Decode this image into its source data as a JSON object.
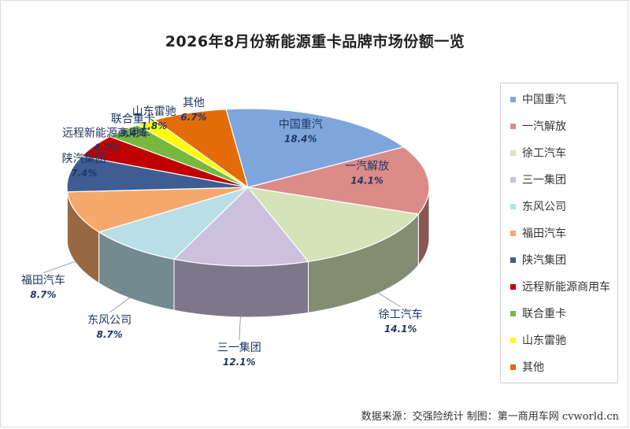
{
  "source_note": "数据来源：交强险统计   制图：第一商用车网 cvworld.cn",
  "chart_data": {
    "type": "pie",
    "title": "2026年8月份新能源重卡品牌市场份额一览",
    "slices": [
      {
        "label": "中国重汽",
        "value": 18.4,
        "value_label": "18.4%",
        "color": "#7ea6dc"
      },
      {
        "label": "一汽解放",
        "value": 14.1,
        "value_label": "14.1%",
        "color": "#dd8b88"
      },
      {
        "label": "徐工汽车",
        "value": 14.1,
        "value_label": "14.1%",
        "color": "#d5e3b8"
      },
      {
        "label": "三一集团",
        "value": 12.1,
        "value_label": "12.1%",
        "color": "#cbc0dd"
      },
      {
        "label": "东风公司",
        "value": 8.7,
        "value_label": "8.7%",
        "color": "#b8dfe8"
      },
      {
        "label": "福田汽车",
        "value": 8.7,
        "value_label": "8.7%",
        "color": "#f5a86c"
      },
      {
        "label": "陕汽集团",
        "value": 7.4,
        "value_label": "7.4%",
        "color": "#3e5d93"
      },
      {
        "label": "远程新能源商用车",
        "value": 4.7,
        "value_label": "4.7%",
        "color": "#c00000"
      },
      {
        "label": "联合重卡",
        "value": 3.4,
        "value_label": "3.4%",
        "color": "#78b83e"
      },
      {
        "label": "山东雷驰",
        "value": 1.8,
        "value_label": "1.8%",
        "color": "#ffff00"
      },
      {
        "label": "其他",
        "value": 6.7,
        "value_label": "6.7%",
        "color": "#e36c09"
      }
    ],
    "legend": "right"
  }
}
